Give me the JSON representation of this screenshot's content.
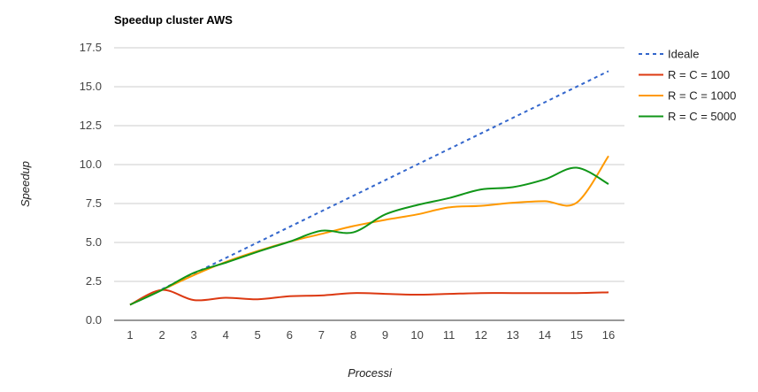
{
  "chart_data": {
    "type": "line",
    "title": "Speedup cluster AWS",
    "xlabel": "Processi",
    "ylabel": "Speedup",
    "x": [
      1,
      2,
      3,
      4,
      5,
      6,
      7,
      8,
      9,
      10,
      11,
      12,
      13,
      14,
      15,
      16
    ],
    "ylim": [
      0,
      17.5
    ],
    "yticks": [
      "0.0",
      "2.5",
      "5.0",
      "7.5",
      "10.0",
      "12.5",
      "15.0",
      "17.5"
    ],
    "xticks": [
      "1",
      "2",
      "3",
      "4",
      "5",
      "6",
      "7",
      "8",
      "9",
      "10",
      "11",
      "12",
      "13",
      "14",
      "15",
      "16"
    ],
    "grid": true,
    "legend_position": "right",
    "series": [
      {
        "name": "Ideale",
        "color": "#3366cc",
        "dash": "dotted",
        "values": [
          1,
          2,
          3,
          4,
          5,
          6,
          7,
          8,
          9,
          10,
          11,
          12,
          13,
          14,
          15,
          16
        ]
      },
      {
        "name": "R = C = 100",
        "color": "#dc3912",
        "dash": "solid",
        "values": [
          1.0,
          1.95,
          1.3,
          1.45,
          1.35,
          1.55,
          1.6,
          1.75,
          1.7,
          1.65,
          1.7,
          1.75,
          1.75,
          1.75,
          1.75,
          1.8
        ]
      },
      {
        "name": "R = C = 1000",
        "color": "#ff9900",
        "dash": "solid",
        "values": [
          1.0,
          1.95,
          2.9,
          3.75,
          4.45,
          5.05,
          5.55,
          6.05,
          6.45,
          6.8,
          7.25,
          7.35,
          7.55,
          7.65,
          7.55,
          10.55
        ]
      },
      {
        "name": "R = C = 5000",
        "color": "#109618",
        "dash": "solid",
        "values": [
          1.0,
          1.95,
          3.05,
          3.7,
          4.4,
          5.05,
          5.75,
          5.65,
          6.8,
          7.4,
          7.85,
          8.4,
          8.55,
          9.05,
          9.8,
          8.75
        ]
      }
    ]
  }
}
